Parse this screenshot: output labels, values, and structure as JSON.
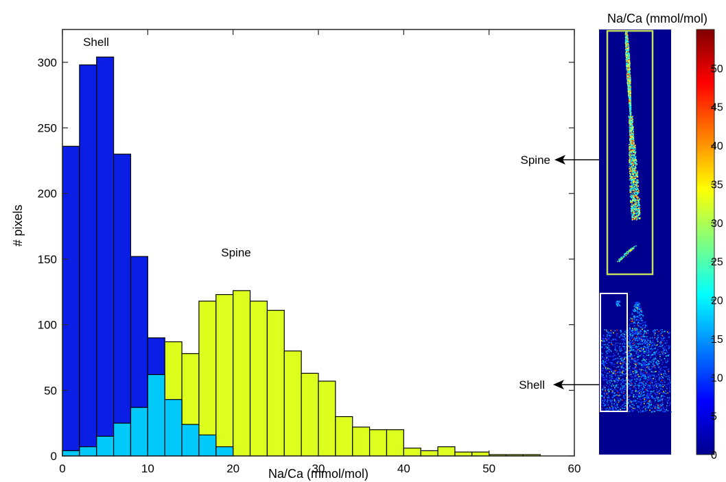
{
  "chart_data": [
    {
      "type": "histogram",
      "xlabel": "Na/Ca (mmol/mol)",
      "ylabel": "# pixels",
      "xlim": [
        0,
        60
      ],
      "ylim": [
        0,
        325
      ],
      "xticks": [
        0,
        10,
        20,
        30,
        40,
        50,
        60
      ],
      "yticks": [
        0,
        50,
        100,
        150,
        200,
        250,
        300
      ],
      "bin_width": 2,
      "annotations": [
        "Shell",
        "Spine"
      ],
      "colors": {
        "shell": "#0a1ee6",
        "spine": "#ddff1e",
        "overlap": "#00c8f8"
      },
      "series": [
        {
          "name": "Shell",
          "bin_start": [
            0,
            2,
            4,
            6,
            8,
            10
          ],
          "values": [
            236,
            298,
            304,
            230,
            152,
            90
          ]
        },
        {
          "name": "Spine",
          "bin_start": [
            0,
            2,
            4,
            6,
            8,
            10,
            12,
            14,
            16,
            18,
            20,
            22,
            24,
            26,
            28,
            30,
            32,
            34,
            36,
            38,
            40,
            42,
            44,
            46,
            48,
            50,
            52,
            54
          ],
          "values": [
            4,
            7,
            15,
            25,
            37,
            62,
            87,
            78,
            118,
            123,
            126,
            118,
            111,
            80,
            63,
            57,
            30,
            22,
            20,
            20,
            6,
            4,
            7,
            3,
            3,
            1,
            1,
            1
          ]
        }
      ],
      "overlap_values": [
        4,
        7,
        15,
        25,
        37,
        62,
        43,
        24,
        16,
        7
      ]
    },
    {
      "type": "heatmap",
      "title": "Na/Ca (mmol/mol)",
      "colormap": "jet",
      "colorbar_ticks": [
        0,
        5,
        10,
        15,
        20,
        25,
        30,
        35,
        40,
        45,
        50
      ],
      "colorbar_tick_labels": [
        "0",
        "5",
        "10",
        "15",
        "20",
        "25",
        "30",
        "35",
        "40",
        "45",
        "50"
      ],
      "region_labels": [
        "Spine",
        "Shell"
      ],
      "background_color": "#00008f"
    }
  ]
}
